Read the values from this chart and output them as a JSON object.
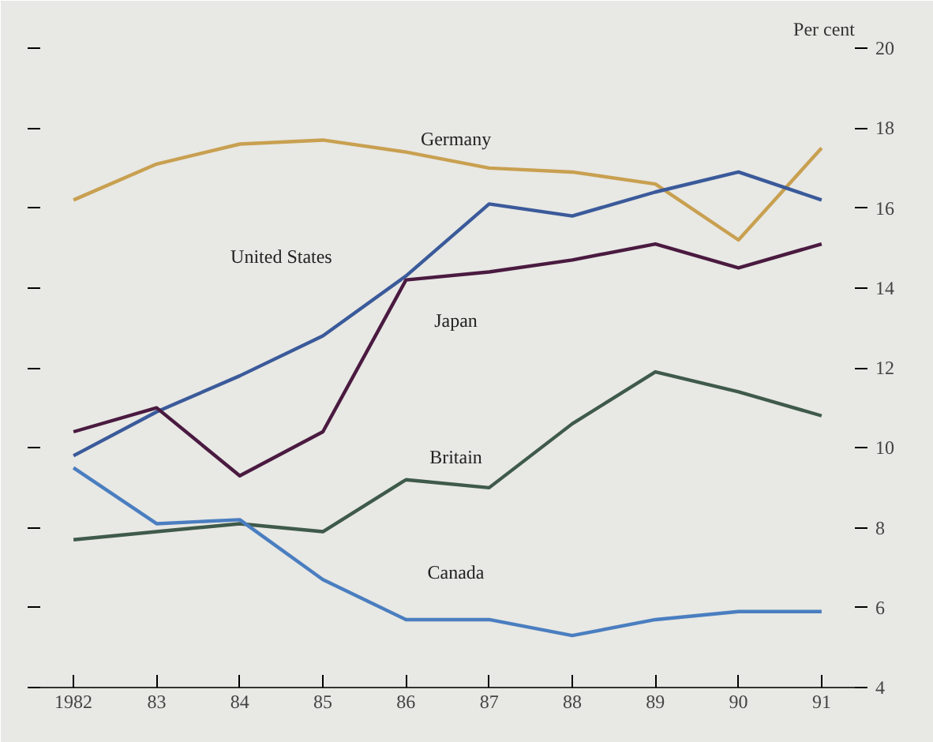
{
  "chart_data": {
    "type": "line",
    "ylabel": "Per cent",
    "x": [
      1982,
      1983,
      1984,
      1985,
      1986,
      1987,
      1988,
      1989,
      1990,
      1991
    ],
    "xlim": [
      1981.6,
      1991.4
    ],
    "xticks": [
      1982,
      {
        "value": 1983,
        "label": "83"
      },
      {
        "value": 1984,
        "label": "84"
      },
      {
        "value": 1985,
        "label": "85"
      },
      {
        "value": 1986,
        "label": "86"
      },
      {
        "value": 1987,
        "label": "87"
      },
      {
        "value": 1988,
        "label": "88"
      },
      {
        "value": 1989,
        "label": "89"
      },
      {
        "value": 1990,
        "label": "90"
      },
      {
        "value": 1991,
        "label": "91"
      }
    ],
    "ylim": [
      4,
      20
    ],
    "yticks": [
      4,
      6,
      8,
      10,
      12,
      14,
      16,
      18,
      20
    ],
    "legend": false,
    "marker": "none",
    "line_style": "solid",
    "series": [
      {
        "name": "Germany",
        "color": "#c8a050",
        "values": [
          16.2,
          17.1,
          17.6,
          17.7,
          17.4,
          17.0,
          16.9,
          16.6,
          15.2,
          17.5
        ]
      },
      {
        "name": "United States",
        "color": "#3a5a9a",
        "values": [
          9.8,
          10.9,
          11.8,
          12.8,
          14.3,
          16.1,
          15.8,
          16.4,
          16.9,
          16.2
        ]
      },
      {
        "name": "Japan",
        "color": "#4a1a40",
        "values": [
          10.4,
          11.0,
          9.3,
          10.4,
          14.2,
          14.4,
          14.7,
          15.1,
          14.5,
          15.1
        ]
      },
      {
        "name": "Britain",
        "color": "#3f5a4a",
        "values": [
          7.7,
          7.9,
          8.1,
          7.9,
          9.2,
          9.0,
          10.6,
          11.9,
          11.4,
          10.8
        ]
      },
      {
        "name": "Canada",
        "color": "#4a7ec0",
        "values": [
          9.5,
          8.1,
          8.2,
          6.7,
          5.7,
          5.7,
          5.3,
          5.7,
          5.9,
          5.9
        ]
      }
    ]
  }
}
